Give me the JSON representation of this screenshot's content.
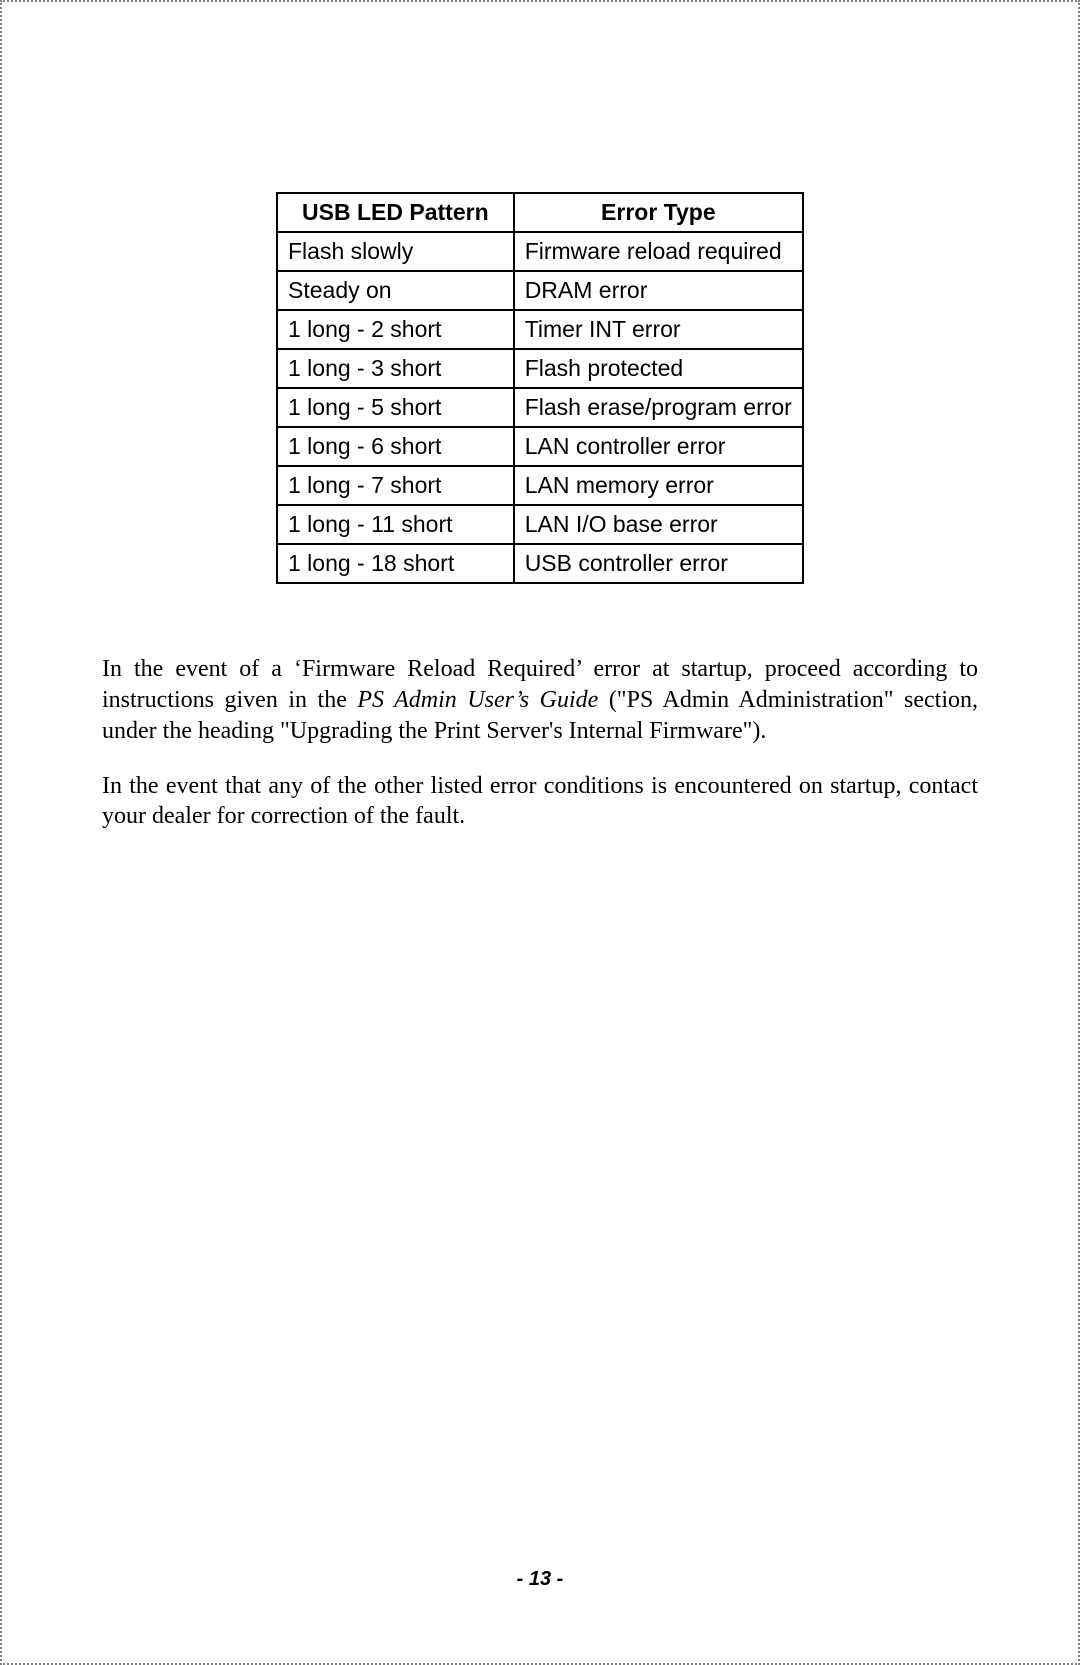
{
  "table": {
    "type": "table",
    "columns": [
      "USB LED Pattern",
      "Error Type"
    ],
    "rows": [
      [
        "Flash slowly",
        "Firmware reload required"
      ],
      [
        "Steady on",
        "DRAM error"
      ],
      [
        "1 long - 2 short",
        "Timer INT error"
      ],
      [
        "1 long - 3 short",
        "Flash protected"
      ],
      [
        "1 long - 5 short",
        "Flash erase/program error"
      ],
      [
        "1 long - 6 short",
        "LAN controller error"
      ],
      [
        "1 long - 7 short",
        "LAN memory error"
      ],
      [
        "1 long - 11 short",
        "LAN I/O base error"
      ],
      [
        "1 long - 18 short",
        "USB controller error"
      ]
    ],
    "border_color": "#000000",
    "header_font_weight": "bold",
    "header_align": "center",
    "cell_align": "left",
    "font_family": "Arial",
    "font_size_pt": 17
  },
  "paragraphs": {
    "p1_a": "In the event of a ‘Firmware Reload Required’ error at startup, proceed according to instructions given in the ",
    "p1_italic": "PS Admin User’s Guide",
    "p1_b": " (\"PS Admin Administration\" section, under the heading \"Upgrading the Print Server's Internal Firmware\").",
    "p2": "In the event that any of the other listed error conditions is encountered on startup, contact your dealer for correction of the fault."
  },
  "page_number": "- 13 -",
  "colors": {
    "background": "#ffffff",
    "text": "#000000",
    "page_border": "#808080"
  },
  "typography": {
    "body_font": "Times New Roman",
    "body_size_pt": 18,
    "table_font": "Arial",
    "footer_font": "Arial",
    "footer_style": "bold italic"
  }
}
